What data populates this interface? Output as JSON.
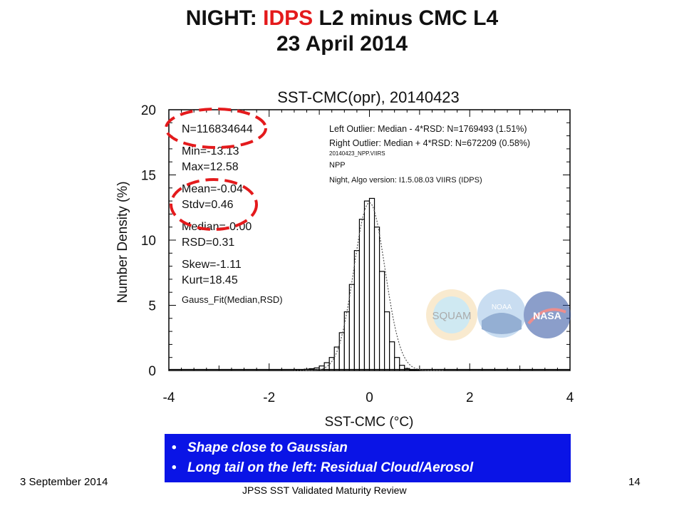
{
  "slide": {
    "title_part1": "NIGHT: ",
    "title_highlight": "IDPS",
    "title_part2": " L2 minus CMC L4",
    "date_title": "23 April 2014",
    "footer_date": "3 September 2014",
    "footer_center": "JPSS SST Validated Maturity Review",
    "page_number": "14",
    "bullets": [
      "Shape close to Gaussian",
      "Long tail on the left: Residual Cloud/Aerosol"
    ],
    "title_highlight_color": "#e41a1c",
    "bullet_box_color": "#0a14e6",
    "annotation_color": "#e41a1c"
  },
  "logos": [
    "SQUAM",
    "NOAA",
    "NASA"
  ],
  "chart_data": {
    "type": "bar",
    "title": "SST-CMC(opr), 20140423",
    "xlabel": "SST-CMC (°C)",
    "ylabel": "Number Density (%)",
    "xlim": [
      -4,
      4
    ],
    "ylim": [
      0,
      20
    ],
    "xticks": [
      -4,
      -2,
      0,
      2,
      4
    ],
    "yticks": [
      0,
      5,
      10,
      15,
      20
    ],
    "bin_width": 0.1,
    "bin_centers": [
      -1.45,
      -1.35,
      -1.25,
      -1.15,
      -1.05,
      -0.95,
      -0.85,
      -0.75,
      -0.65,
      -0.55,
      -0.45,
      -0.35,
      -0.25,
      -0.15,
      -0.05,
      0.05,
      0.15,
      0.25,
      0.35,
      0.45,
      0.55,
      0.65,
      0.75,
      0.85,
      0.95
    ],
    "values": [
      0.05,
      0.07,
      0.1,
      0.14,
      0.2,
      0.35,
      0.6,
      1.0,
      1.8,
      2.9,
      4.5,
      6.6,
      9.2,
      11.6,
      13.0,
      13.2,
      11.0,
      7.6,
      4.5,
      2.2,
      1.0,
      0.4,
      0.15,
      0.06,
      0.02
    ],
    "gauss_fit": {
      "median": -0.0,
      "rsd": 0.31
    },
    "stats": [
      {
        "text": "N=116834644",
        "group": 0
      },
      {
        "text": "Min=-13.13",
        "group": 1
      },
      {
        "text": "Max=12.58",
        "group": 1
      },
      {
        "text": "Mean=-0.04",
        "group": 2
      },
      {
        "text": "Stdv=0.46",
        "group": 2
      },
      {
        "text": "Median=-0.00",
        "group": 3
      },
      {
        "text": "RSD=0.31",
        "group": 3
      },
      {
        "text": "Skew=-1.11",
        "group": 4
      },
      {
        "text": "Kurt=18.45",
        "group": 4
      },
      {
        "text": "Gauss_Fit(Median,RSD)",
        "group": 5
      }
    ],
    "info": [
      "Left Outlier:  Median - 4*RSD: N=1769493 (1.51%)",
      "Right Outlier: Median + 4*RSD: N=672209 (0.58%)",
      "20140423_NPP.VIIRS",
      "NPP",
      "Night, Algo version: I1.5.08.03 VIIRS (IDPS)"
    ]
  }
}
